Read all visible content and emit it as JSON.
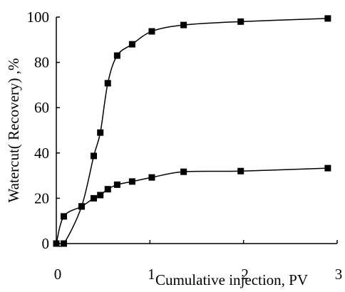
{
  "chart_data": {
    "type": "line",
    "x_label": "Cumulative injection,  PV",
    "y_label": "Watercut( Recovery) ,%",
    "xlim": [
      0,
      3
    ],
    "xticks": [
      0,
      1,
      2,
      3
    ],
    "ylim": [
      0,
      100
    ],
    "yticks": [
      0,
      20,
      40,
      60,
      80,
      100
    ],
    "series": [
      {
        "color": "#000000",
        "x": [
          0,
          0.08,
          0.27,
          0.4,
          0.47,
          0.55,
          0.65,
          0.81,
          1.02,
          1.36,
          1.97,
          2.9
        ],
        "values": [
          0,
          0,
          16.4,
          38.7,
          49,
          70.8,
          83,
          88,
          93.7,
          96.5,
          98,
          99.4
        ]
      },
      {
        "color": "#000000",
        "x": [
          0,
          0.08,
          0.27,
          0.4,
          0.47,
          0.55,
          0.65,
          0.81,
          1.02,
          1.36,
          1.97,
          2.9
        ],
        "values": [
          0,
          12,
          16.4,
          20,
          21.4,
          24,
          26,
          27.4,
          29.2,
          31.7,
          32,
          33.3
        ]
      }
    ]
  }
}
